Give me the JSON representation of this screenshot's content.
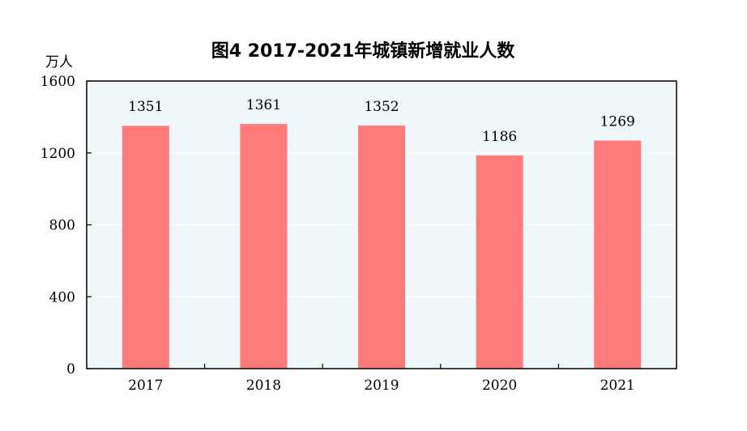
{
  "chart_data": {
    "type": "bar",
    "title": "图4   2017-2021年城镇新增就业人数",
    "unit": "万人",
    "categories": [
      "2017",
      "2018",
      "2019",
      "2020",
      "2021"
    ],
    "values": [
      1351,
      1361,
      1352,
      1186,
      1269
    ],
    "ylim": [
      0,
      1600
    ],
    "yticks": [
      0,
      400,
      800,
      1200,
      1600
    ],
    "grid": true,
    "legend": "none",
    "colors": {
      "bar": "#ff7b7b",
      "plot_background": "#f0f7fa",
      "gridline": "#ffffff",
      "axis": "#000000",
      "text": "#000000"
    }
  }
}
